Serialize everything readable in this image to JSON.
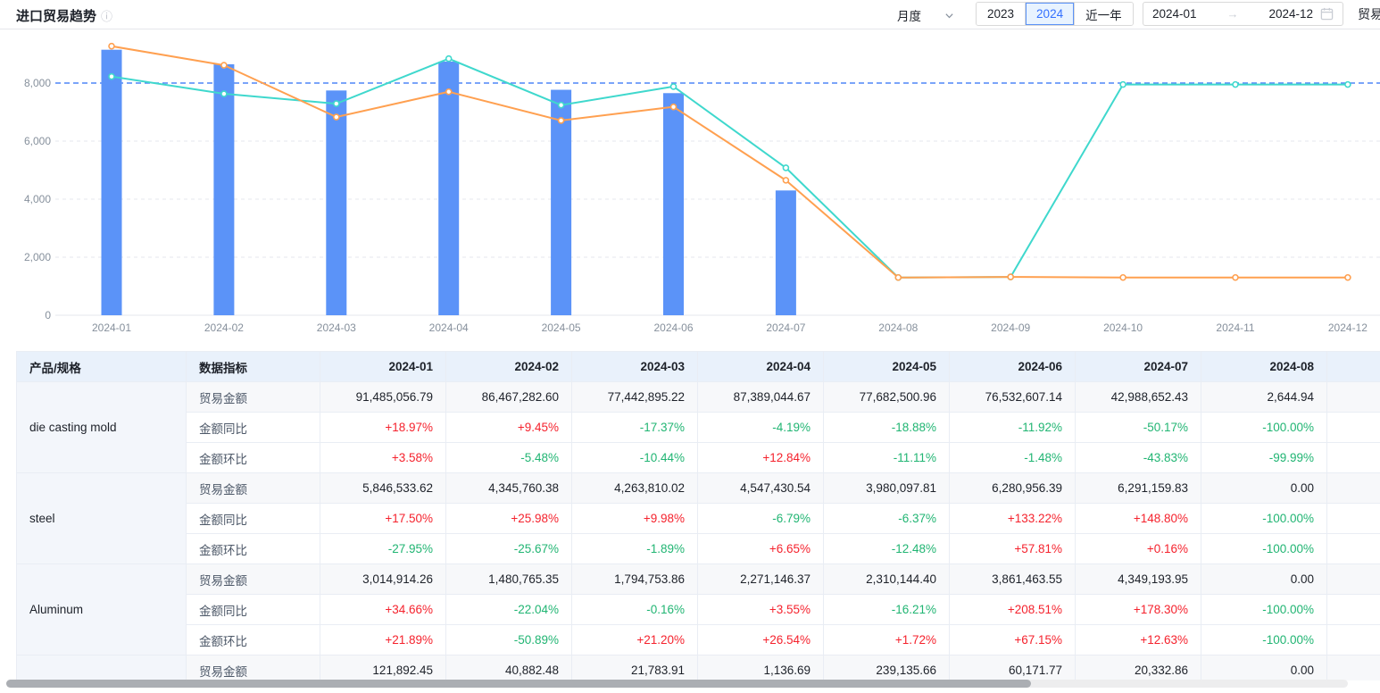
{
  "header": {
    "title": "进口贸易趋势",
    "info_icon": "info",
    "controls": {
      "period": {
        "value": "月度"
      },
      "year_tabs": {
        "options": [
          "2023",
          "2024",
          "近一年"
        ],
        "active": "2024"
      },
      "date_range": {
        "start": "2024-01",
        "end": "2024-12",
        "arrow": "→"
      },
      "next_control_label": "贸易"
    }
  },
  "colors": {
    "bar": "#5B93F8",
    "line_teal": "#3FD8CD",
    "line_orange": "#FFA050",
    "reference": "#4F86F7",
    "positive": "#F5222D",
    "negative": "#21B573",
    "accent": "#3370FF"
  },
  "chart_data": {
    "type": "bar+line combo",
    "x": [
      "2024-01",
      "2024-02",
      "2024-03",
      "2024-04",
      "2024-05",
      "2024-06",
      "2024-07",
      "2024-08",
      "2024-09",
      "2024-10",
      "2024-11",
      "2024-12"
    ],
    "ylim": [
      0,
      9600
    ],
    "yticks": [
      0,
      2000,
      4000,
      6000,
      8000
    ],
    "grid": true,
    "legend": "none",
    "reference_line": {
      "y": 8000,
      "style": "dashed",
      "color": "#4F86F7"
    },
    "bar_series": {
      "name": "trade-amount-bar",
      "color": "#5B93F8",
      "values": [
        9148,
        8647,
        7744,
        8739,
        7768,
        7653,
        4299,
        0,
        null,
        null,
        null,
        null
      ]
    },
    "line_series": [
      {
        "name": "line-teal",
        "color": "#3FD8CD",
        "values": [
          8225,
          7630,
          7290,
          8840,
          7240,
          7880,
          5080,
          1300,
          1320,
          7950,
          7950,
          7950
        ]
      },
      {
        "name": "line-orange",
        "color": "#FFA050",
        "values": [
          9270,
          8615,
          6830,
          7700,
          6710,
          7180,
          4650,
          1300,
          1320,
          1300,
          1300,
          1300
        ]
      }
    ]
  },
  "table": {
    "columns": [
      "产品/规格",
      "数据指标",
      "2024-01",
      "2024-02",
      "2024-03",
      "2024-04",
      "2024-05",
      "2024-06",
      "2024-07",
      "2024-08",
      ""
    ],
    "groups": [
      {
        "product": "die casting mold",
        "rows": [
          {
            "label": "贸易金额",
            "values": [
              "91,485,056.79",
              "86,467,282.60",
              "77,442,895.22",
              "87,389,044.67",
              "77,682,500.96",
              "76,532,607.14",
              "42,988,652.43",
              "2,644.94"
            ]
          },
          {
            "label": "金额同比",
            "values": [
              "+18.97%",
              "+9.45%",
              "-17.37%",
              "-4.19%",
              "-18.88%",
              "-11.92%",
              "-50.17%",
              "-100.00%"
            ]
          },
          {
            "label": "金额环比",
            "values": [
              "+3.58%",
              "-5.48%",
              "-10.44%",
              "+12.84%",
              "-11.11%",
              "-1.48%",
              "-43.83%",
              "-99.99%"
            ]
          }
        ]
      },
      {
        "product": "steel",
        "rows": [
          {
            "label": "贸易金额",
            "values": [
              "5,846,533.62",
              "4,345,760.38",
              "4,263,810.02",
              "4,547,430.54",
              "3,980,097.81",
              "6,280,956.39",
              "6,291,159.83",
              "0.00"
            ]
          },
          {
            "label": "金额同比",
            "values": [
              "+17.50%",
              "+25.98%",
              "+9.98%",
              "-6.79%",
              "-6.37%",
              "+133.22%",
              "+148.80%",
              "-100.00%"
            ]
          },
          {
            "label": "金额环比",
            "values": [
              "-27.95%",
              "-25.67%",
              "-1.89%",
              "+6.65%",
              "-12.48%",
              "+57.81%",
              "+0.16%",
              "-100.00%"
            ]
          }
        ]
      },
      {
        "product": "Aluminum",
        "rows": [
          {
            "label": "贸易金额",
            "values": [
              "3,014,914.26",
              "1,480,765.35",
              "1,794,753.86",
              "2,271,146.37",
              "2,310,144.40",
              "3,861,463.55",
              "4,349,193.95",
              "0.00"
            ]
          },
          {
            "label": "金额同比",
            "values": [
              "+34.66%",
              "-22.04%",
              "-0.16%",
              "+3.55%",
              "-16.21%",
              "+208.51%",
              "+178.30%",
              "-100.00%"
            ]
          },
          {
            "label": "金额环比",
            "values": [
              "+21.89%",
              "-50.89%",
              "+21.20%",
              "+26.54%",
              "+1.72%",
              "+67.15%",
              "+12.63%",
              "-100.00%"
            ]
          }
        ]
      },
      {
        "product": "",
        "rows": [
          {
            "label": "贸易金额",
            "values": [
              "121,892.45",
              "40,882.48",
              "21,783.91",
              "1,136.69",
              "239,135.66",
              "60,171.77",
              "20,332.86",
              "0.00"
            ]
          }
        ]
      }
    ]
  }
}
